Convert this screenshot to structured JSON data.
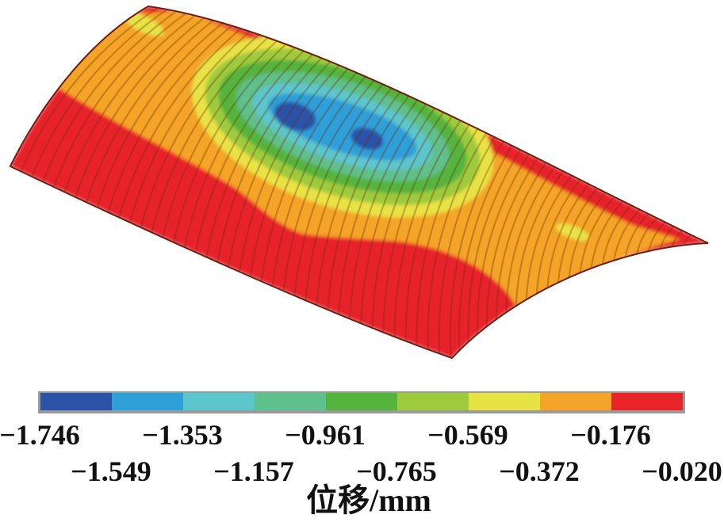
{
  "page": {
    "background": "#ffffff"
  },
  "legend": {
    "frame_color": "#9b9b9b",
    "axis_label": "位移/mm",
    "tick_row_upper": [
      "−1.746",
      "−1.353",
      "−0.961",
      "−0.569",
      "−0.176"
    ],
    "tick_row_lower": [
      "−1.549",
      "−1.157",
      "−0.765",
      "−0.372",
      "−0.020"
    ]
  },
  "chart_data": {
    "type": "heatmap",
    "title": "位移/mm",
    "variable": "位移 (displacement)",
    "units": "mm",
    "legend_boundaries_mm": [
      -1.746,
      -1.549,
      -1.353,
      -1.157,
      -0.961,
      -0.765,
      -0.569,
      -0.372,
      -0.176,
      -0.02
    ],
    "band_colors": [
      "#2b53a7",
      "#2e9fd9",
      "#5cc6cd",
      "#5ec08c",
      "#55b43c",
      "#9ecb3e",
      "#e7e344",
      "#f4a428",
      "#e82429"
    ],
    "min_mm": -1.746,
    "max_mm": -0.02,
    "surface": "corrugated cylindrical barrel-shell, 3D FEM displacement contour view",
    "extrema_note": "two dark-blue minimum-displacement spots near mid-span crest inside nested green/cyan rings; red maximum bands along left end, front lower edge and rear rim",
    "outline_color": "#701d10",
    "rib_color": "#6e2d0a"
  }
}
